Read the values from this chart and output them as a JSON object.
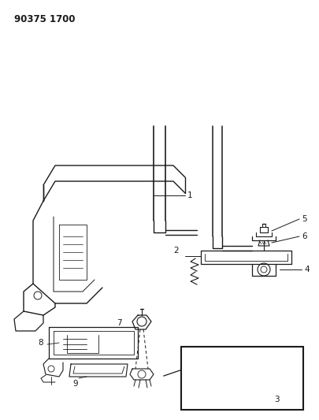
{
  "title_code": "90375 1700",
  "bg_color": "#ffffff",
  "line_color": "#1a1a1a",
  "fig_width": 4.06,
  "fig_height": 5.33,
  "dpi": 100
}
